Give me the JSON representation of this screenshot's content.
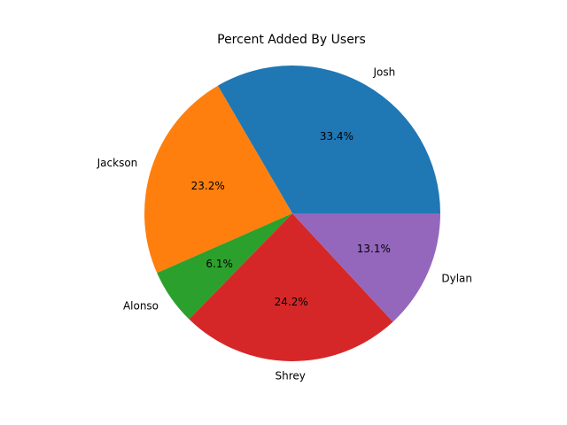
{
  "chart_data": {
    "type": "pie",
    "title": "Percent Added By Users",
    "categories": [
      "Josh",
      "Jackson",
      "Alonso",
      "Shrey",
      "Dylan"
    ],
    "values": [
      33.4,
      23.2,
      6.1,
      24.2,
      13.1
    ],
    "value_labels": [
      "33.4%",
      "23.2%",
      "6.1%",
      "24.2%",
      "13.1%"
    ],
    "colors": [
      "#1f77b4",
      "#ff7f0e",
      "#2ca02c",
      "#d62728",
      "#9467bd"
    ],
    "start_angle_deg": 0,
    "direction": "counterclockwise"
  }
}
